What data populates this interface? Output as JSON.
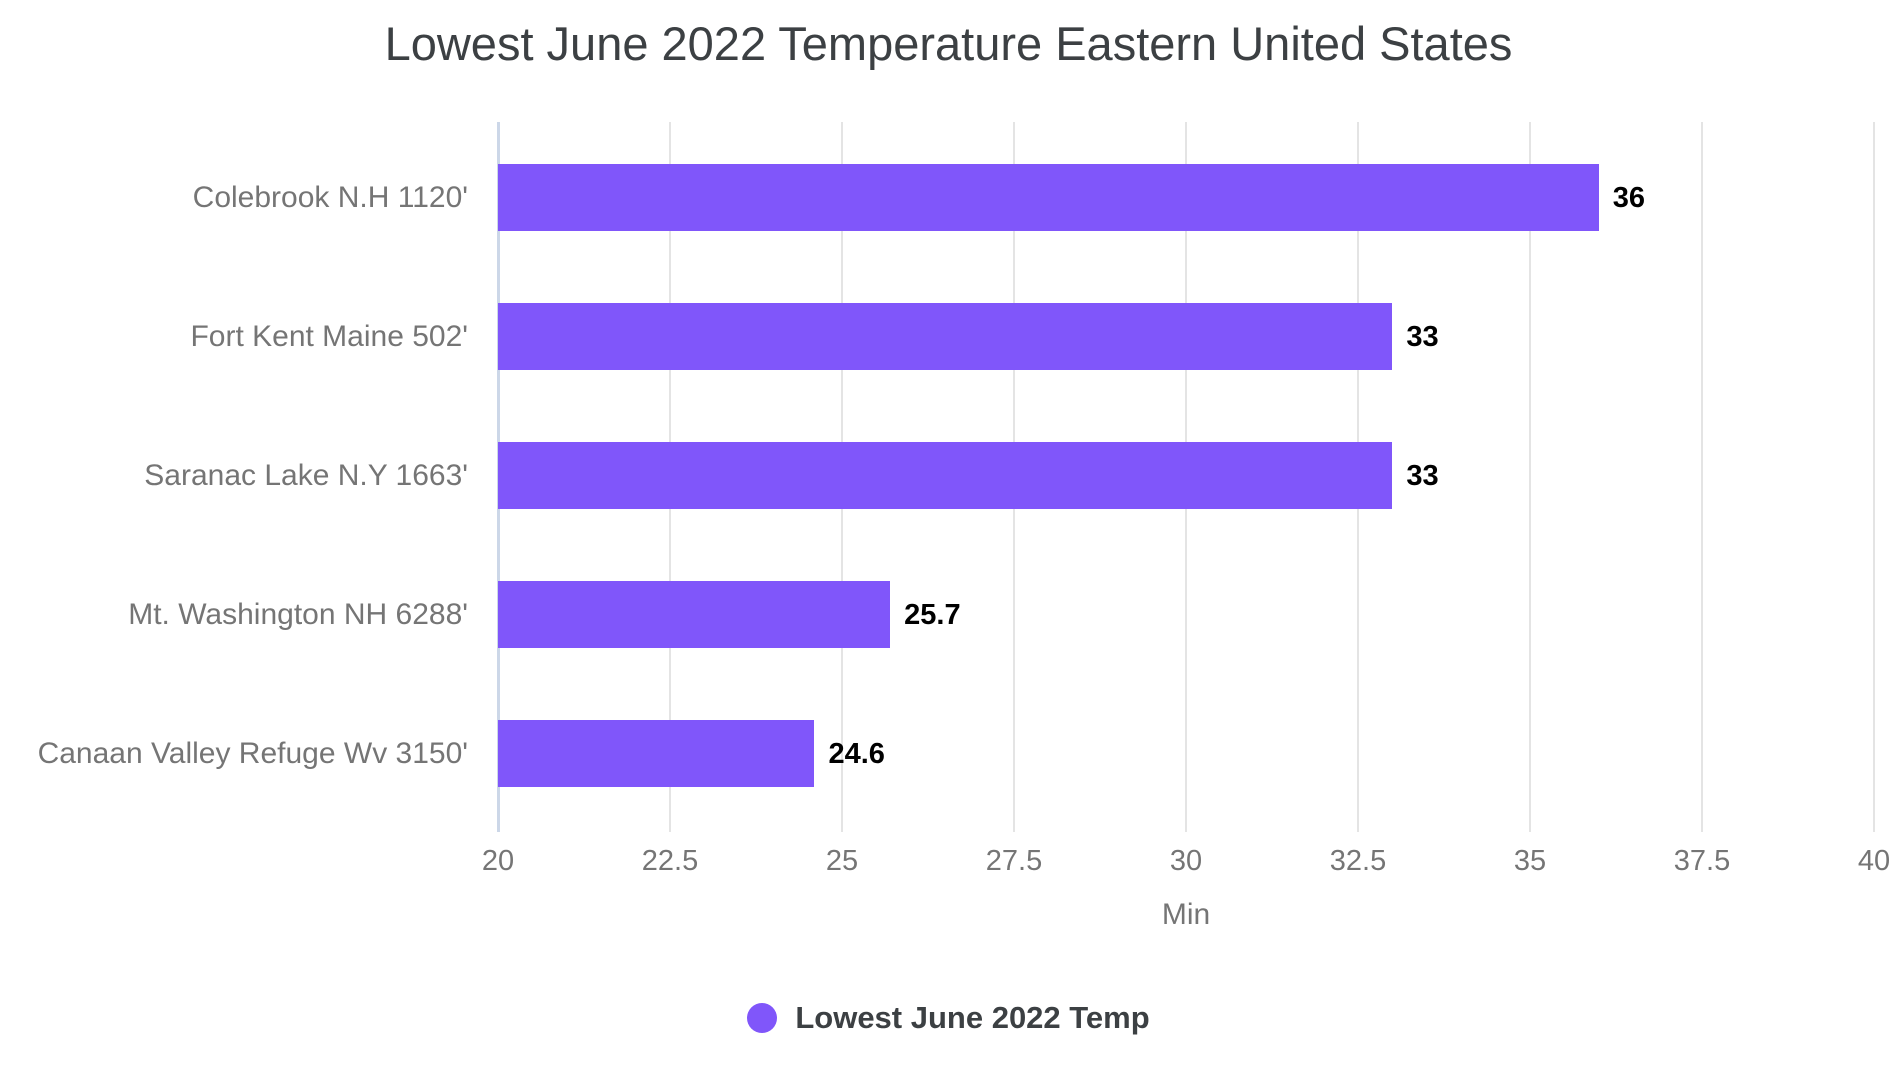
{
  "title": "Lowest June 2022 Temperature Eastern United States",
  "chart_data": {
    "type": "bar",
    "orientation": "horizontal",
    "title": "Lowest June 2022 Temperature Eastern United States",
    "categories": [
      "Colebrook N.H 1120'",
      "Fort Kent Maine 502'",
      "Saranac Lake N.Y 1663'",
      "Mt. Washington NH 6288'",
      "Canaan Valley Refuge Wv 3150'"
    ],
    "series": [
      {
        "name": "Lowest June 2022 Temp",
        "values": [
          36,
          33,
          33,
          25.7,
          24.6
        ]
      }
    ],
    "display_values": [
      "36",
      "33",
      "33",
      "25.7",
      "24.6"
    ],
    "xlabel": "Min",
    "ylabel": "",
    "xlim": [
      20,
      40
    ],
    "x_tick_values": [
      20,
      22.5,
      25,
      27.5,
      30,
      32.5,
      35,
      37.5,
      40
    ],
    "x_tick_labels": [
      "20",
      "22.5",
      "25",
      "27.5",
      "30",
      "32.5",
      "35",
      "37.5",
      "40"
    ],
    "grid": "vertical",
    "bar_color": "#8056fa",
    "legend": {
      "position": "bottom",
      "items": [
        {
          "label": "Lowest June 2022 Temp",
          "color": "#8056fa"
        }
      ]
    }
  },
  "colors": {
    "bar": "#8056fa",
    "title_text": "#3c4043",
    "axis_text": "#757575",
    "value_label_text": "#000000",
    "gridline": "#e4e4e4",
    "baseline": "#ccd7e8",
    "background": "#ffffff"
  }
}
